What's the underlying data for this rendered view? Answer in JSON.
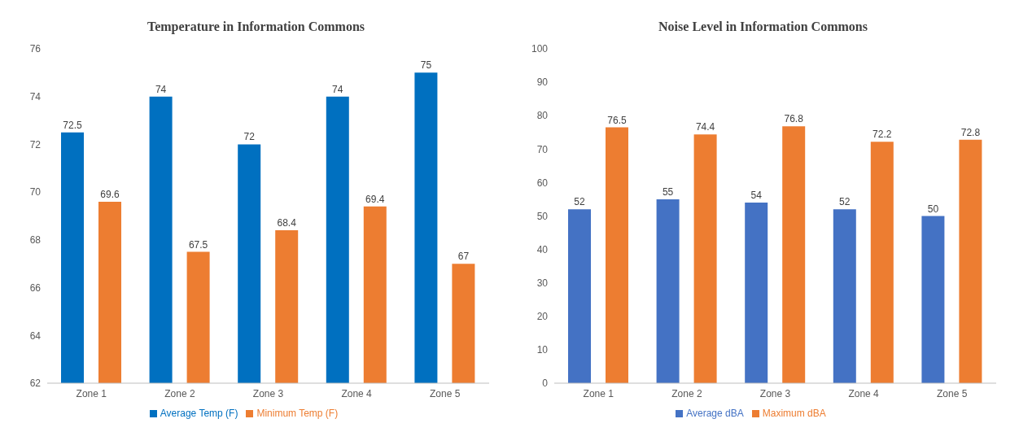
{
  "chart_data": [
    {
      "type": "bar",
      "title": "Temperature in Information Commons",
      "categories": [
        "Zone 1",
        "Zone 2",
        "Zone 3",
        "Zone 4",
        "Zone 5"
      ],
      "series": [
        {
          "name": "Average Temp (F)",
          "color": "#0070c0",
          "values": [
            72.5,
            74,
            72,
            74,
            75
          ]
        },
        {
          "name": "Minimum Temp (F)",
          "color": "#ed7d31",
          "values": [
            69.6,
            67.5,
            68.4,
            69.4,
            67
          ]
        }
      ],
      "ylim": [
        62,
        76
      ],
      "yticks": [
        62,
        64,
        66,
        68,
        70,
        72,
        74,
        76
      ],
      "grid": false,
      "legend": "bottom",
      "data_labels": true
    },
    {
      "type": "bar",
      "title": "Noise Level in Information Commons",
      "categories": [
        "Zone 1",
        "Zone 2",
        "Zone 3",
        "Zone 4",
        "Zone 5"
      ],
      "series": [
        {
          "name": "Average dBA",
          "color": "#4472c4",
          "values": [
            52,
            55,
            54,
            52,
            50
          ]
        },
        {
          "name": "Maximum dBA",
          "color": "#ed7d31",
          "values": [
            76.5,
            74.4,
            76.8,
            72.2,
            72.8
          ]
        }
      ],
      "ylim": [
        0,
        100
      ],
      "yticks": [
        0,
        10,
        20,
        30,
        40,
        50,
        60,
        70,
        80,
        90,
        100
      ],
      "grid": false,
      "legend": "bottom",
      "data_labels": true
    }
  ]
}
